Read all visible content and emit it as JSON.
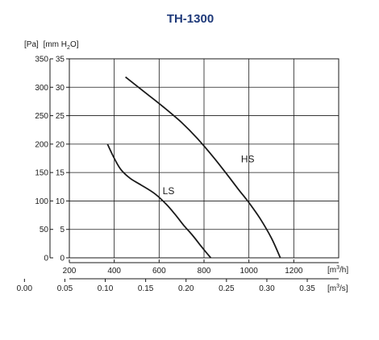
{
  "chart_data": {
    "type": "line",
    "title": "TH-1300",
    "y_axis_outer": {
      "label_parts": [
        "[Pa]"
      ],
      "ticks": [
        "0",
        "50",
        "100",
        "150",
        "200",
        "250",
        "300",
        "350"
      ],
      "ylim": [
        0,
        350
      ]
    },
    "y_axis_inner": {
      "label_parts": [
        "[mm H",
        "2",
        "O]"
      ],
      "ticks": [
        "0",
        "5",
        "10",
        "15",
        "20",
        "25",
        "30",
        "35"
      ],
      "ylim": [
        0,
        35
      ]
    },
    "x_axis_primary": {
      "unit_parts": [
        "[m",
        "3",
        "/h]"
      ],
      "ticks": [
        "200",
        "400",
        "600",
        "800",
        "1000",
        "1200"
      ],
      "xlim": [
        200,
        1400
      ]
    },
    "x_axis_secondary": {
      "unit_parts": [
        "[m",
        "3",
        "/s]"
      ],
      "ticks": [
        "0.00",
        "0.05",
        "0.10",
        "0.15",
        "0.20",
        "0.25",
        "0.30",
        "0.35"
      ],
      "tick_values": [
        0.0,
        0.05,
        0.1,
        0.15,
        0.2,
        0.25,
        0.3,
        0.35
      ]
    },
    "grid": true,
    "series": [
      {
        "name": "HS",
        "x": [
          450,
          540,
          620,
          700,
          770,
          840,
          900,
          950,
          1000,
          1050,
          1100,
          1140
        ],
        "y": [
          318,
          290,
          265,
          238,
          210,
          178,
          148,
          122,
          97,
          69,
          35,
          0
        ]
      },
      {
        "name": "LS",
        "x": [
          370,
          400,
          430,
          470,
          520,
          580,
          630,
          670,
          710,
          750,
          790,
          830
        ],
        "y": [
          200,
          175,
          155,
          140,
          128,
          113,
          95,
          77,
          57,
          39,
          19,
          0
        ]
      }
    ],
    "series_color": "#1a1a1a"
  }
}
